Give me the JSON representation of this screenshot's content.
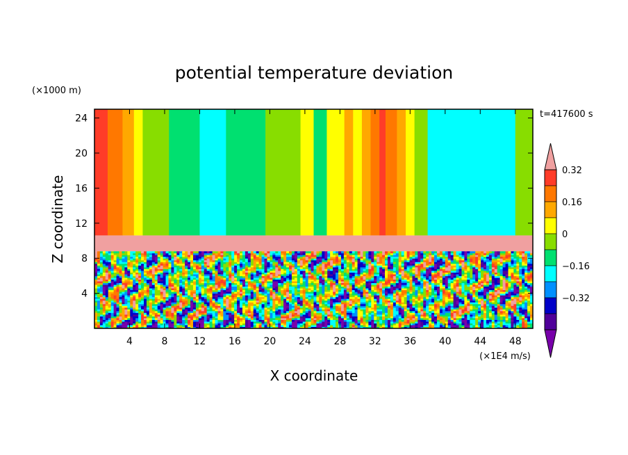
{
  "chart_data": {
    "type": "heatmap",
    "title": "potential temperature deviation",
    "xlabel": "X coordinate",
    "ylabel": "Z coordinate",
    "x_unit": "(×1E4 m/s)",
    "y_unit": "(×1000 m)",
    "time_label": "t=417600 s",
    "xlim": [
      0,
      50
    ],
    "ylim": [
      0,
      25
    ],
    "x_ticks": [
      4,
      8,
      12,
      16,
      20,
      24,
      28,
      32,
      36,
      40,
      44,
      48
    ],
    "y_ticks": [
      4,
      8,
      12,
      16,
      20,
      24
    ],
    "colorbar": {
      "labels": [
        "0.32",
        "0.16",
        "0",
        "−0.16",
        "−0.32"
      ],
      "label_values": [
        0.32,
        0.16,
        0,
        -0.16,
        -0.32
      ],
      "levels": [
        0.4,
        0.32,
        0.24,
        0.16,
        0.08,
        0,
        -0.08,
        -0.16,
        -0.24,
        -0.32,
        -0.4
      ],
      "colors": [
        "#f0a0a0",
        "#ff3c28",
        "#ff7800",
        "#ffa800",
        "#ffff00",
        "#88dd00",
        "#00e070",
        "#00ffff",
        "#0090ff",
        "#0000c8",
        "#50009a",
        "#7800aa"
      ],
      "extend": "both"
    },
    "upper_layer_bands": [
      {
        "x": [
          0,
          1.5
        ],
        "value": 0.34
      },
      {
        "x": [
          1.5,
          3.2
        ],
        "value": 0.26
      },
      {
        "x": [
          3.2,
          4.5
        ],
        "value": 0.18
      },
      {
        "x": [
          4.5,
          5.5
        ],
        "value": 0.12
      },
      {
        "x": [
          5.5,
          8.5
        ],
        "value": 0.05
      },
      {
        "x": [
          8.5,
          12
        ],
        "value": -0.03
      },
      {
        "x": [
          12,
          15
        ],
        "value": -0.13
      },
      {
        "x": [
          15,
          19.5
        ],
        "value": -0.05
      },
      {
        "x": [
          19.5,
          23.5
        ],
        "value": 0.05
      },
      {
        "x": [
          23.5,
          25
        ],
        "value": 0.15
      },
      {
        "x": [
          25,
          26.5
        ],
        "value": -0.03
      },
      {
        "x": [
          26.5,
          28.5
        ],
        "value": 0.12
      },
      {
        "x": [
          28.5,
          29.5
        ],
        "value": 0.18
      },
      {
        "x": [
          29.5,
          30.5
        ],
        "value": 0.12
      },
      {
        "x": [
          30.5,
          31.5
        ],
        "value": 0.2
      },
      {
        "x": [
          31.5,
          32.5
        ],
        "value": 0.28
      },
      {
        "x": [
          32.5,
          33.2
        ],
        "value": 0.34
      },
      {
        "x": [
          33.2,
          34.5
        ],
        "value": 0.27
      },
      {
        "x": [
          34.5,
          35.5
        ],
        "value": 0.19
      },
      {
        "x": [
          35.5,
          36.5
        ],
        "value": 0.12
      },
      {
        "x": [
          36.5,
          38
        ],
        "value": 0.04
      },
      {
        "x": [
          38,
          48
        ],
        "value": -0.13
      },
      {
        "x": [
          48,
          50
        ],
        "value": 0.05
      }
    ],
    "tropopause_band": {
      "z": [
        8.8,
        10.6
      ],
      "value": 0.45
    },
    "lower_layer": "turbulent mixed field, values spanning −0.4 to 0.4"
  }
}
